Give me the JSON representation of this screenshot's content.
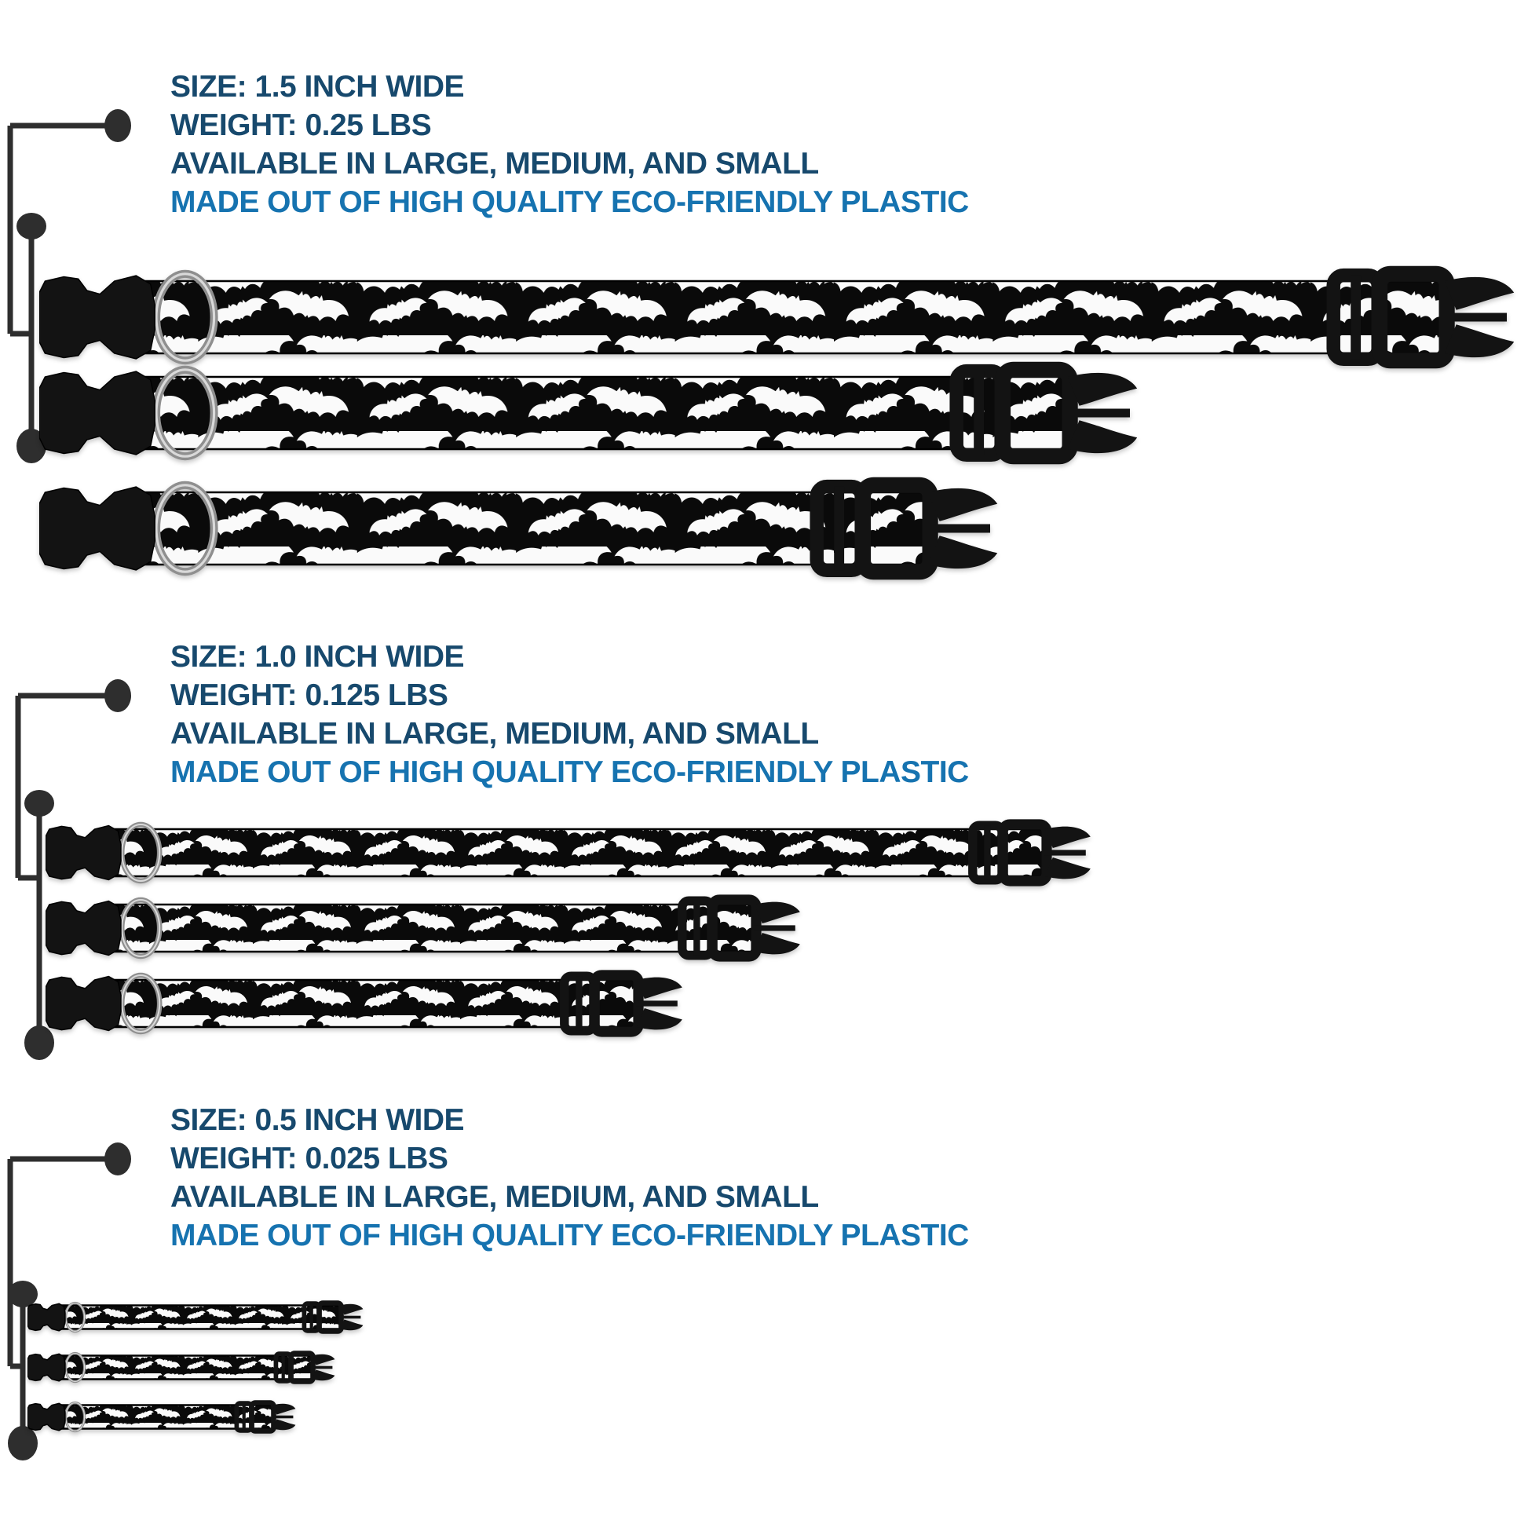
{
  "colors": {
    "navy_text": "#17496d",
    "highlight_blue_text": "#1673b0",
    "bracket_line": "#2e2e2e",
    "strap_black": "#0a0a0a",
    "bat_white": "#fafafa",
    "hardware_black": "#131313",
    "metal_ring": "#8f8f8f"
  },
  "product": {
    "pattern_name": "black and white bat print strap",
    "hardware_name": "black plastic side-release buckle with metal D-ring"
  },
  "sections": [
    {
      "name": "1.5 inch collars",
      "text": {
        "size": "SIZE: 1.5 INCH WIDE",
        "weight": "WEIGHT: 0.25 LBS",
        "available": "AVAILABLE IN LARGE, MEDIUM, AND SMALL",
        "material": "MADE OUT OF HIGH QUALITY ECO-FRIENDLY PLASTIC"
      },
      "collars": [
        {
          "size_label": "large",
          "length": 1880
        },
        {
          "size_label": "medium",
          "length": 1400
        },
        {
          "size_label": "small",
          "length": 1222
        }
      ]
    },
    {
      "name": "1.0 inch collars",
      "text": {
        "size": "SIZE: 1.0 INCH WIDE",
        "weight": "WEIGHT: 0.125 LBS",
        "available": "AVAILABLE IN LARGE, MEDIUM, AND SMALL",
        "material": "MADE OUT OF HIGH QUALITY ECO-FRIENDLY PLASTIC"
      },
      "collars": [
        {
          "size_label": "large",
          "length": 1332
        },
        {
          "size_label": "medium",
          "length": 962
        },
        {
          "size_label": "small",
          "length": 812
        }
      ]
    },
    {
      "name": "0.5 inch collars",
      "text": {
        "size": "SIZE: 0.5 INCH WIDE",
        "weight": "WEIGHT: 0.025 LBS",
        "available": "AVAILABLE IN LARGE, MEDIUM, AND SMALL",
        "material": "MADE OUT OF HIGH QUALITY ECO-FRIENDLY PLASTIC"
      },
      "collars": [
        {
          "size_label": "large",
          "length": 428
        },
        {
          "size_label": "medium",
          "length": 392
        },
        {
          "size_label": "small",
          "length": 342
        }
      ]
    }
  ]
}
